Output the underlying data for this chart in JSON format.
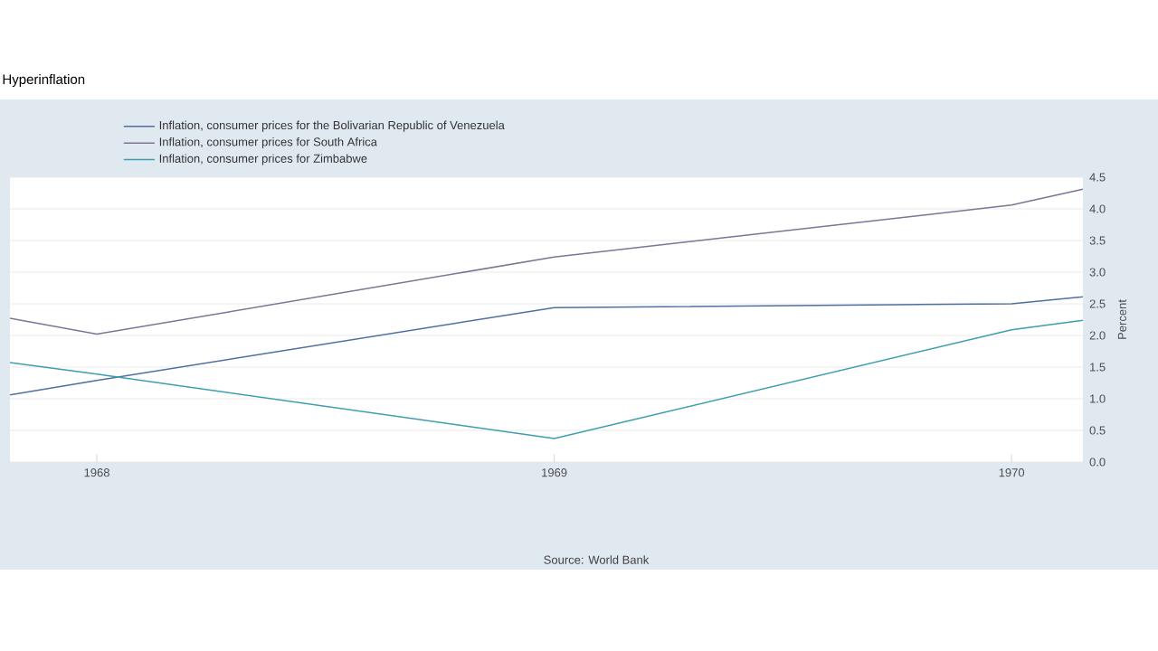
{
  "chart_data": {
    "type": "line",
    "title": "Hyperinflation",
    "ylabel": "Percent",
    "annotations": [
      "Source: World Bank"
    ],
    "xlim": [
      1967.81,
      1970.156
    ],
    "xticks": [
      1968,
      1969,
      1970
    ],
    "ylim": [
      0,
      4.5
    ],
    "yticks": [
      {
        "value": 0,
        "label": "0.0"
      },
      {
        "value": 0.5,
        "label": "0.5"
      },
      {
        "value": 1,
        "label": "1.0"
      },
      {
        "value": 1.5,
        "label": "1.5"
      },
      {
        "value": 2,
        "label": "2.0"
      },
      {
        "value": 2.5,
        "label": "2.5"
      },
      {
        "value": 3,
        "label": "3.0"
      },
      {
        "value": 3.5,
        "label": "3.5"
      },
      {
        "value": 4,
        "label": "4.0"
      },
      {
        "value": 4.5,
        "label": "4.5"
      }
    ],
    "grid": "y",
    "legend": "top left",
    "series": [
      {
        "name": "Inflation, consumer prices for the Bolivarian Republic of Venezuela",
        "color": "#4f6fa3",
        "x": [
          1967.81,
          1968,
          1969,
          1970,
          1970.156
        ],
        "values": [
          1.06,
          1.29,
          2.44,
          2.5,
          2.61
        ]
      },
      {
        "name": "Inflation, consumer prices for South Africa",
        "color": "#7f7396",
        "x": [
          1967.81,
          1968,
          1969,
          1970,
          1970.156
        ],
        "values": [
          2.27,
          2.02,
          3.24,
          4.06,
          4.31
        ]
      },
      {
        "name": "Inflation, consumer prices for Zimbabwe",
        "color": "#3c9fae",
        "x": [
          1967.81,
          1968,
          1969,
          1970,
          1970.156
        ],
        "values": [
          1.57,
          1.39,
          0.37,
          2.09,
          2.24
        ]
      }
    ]
  }
}
